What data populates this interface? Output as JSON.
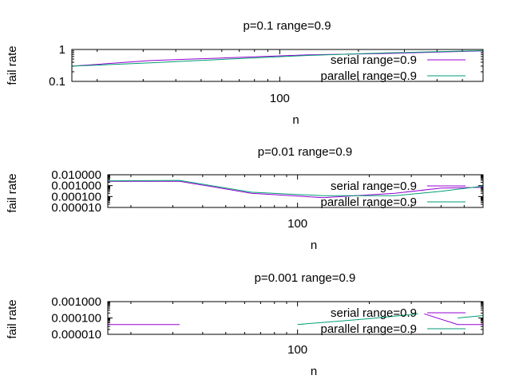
{
  "chart_data": [
    {
      "type": "line",
      "title": "p=0.1 range=0.9",
      "xlabel": "n",
      "ylabel": "fail rate",
      "xscale": "log",
      "yscale": "log",
      "xlim": [
        16,
        600
      ],
      "ylim": [
        0.1,
        1
      ],
      "ytick_labels": [
        "1",
        "0.1"
      ],
      "ytick_values": [
        1,
        0.1
      ],
      "xtick_labels": [
        "100"
      ],
      "xtick_values": [
        100
      ],
      "grid": false,
      "legend_position": "bottom-right",
      "series": [
        {
          "name": "serial range=0.9",
          "color": "#9400d3",
          "x": [
            16,
            32,
            64,
            128,
            256,
            600
          ],
          "y": [
            0.3,
            0.45,
            0.55,
            0.68,
            0.75,
            0.9
          ]
        },
        {
          "name": "parallel  range=0.9",
          "color": "#009e73",
          "x": [
            16,
            32,
            64,
            128,
            256,
            600
          ],
          "y": [
            0.3,
            0.38,
            0.5,
            0.65,
            0.78,
            0.92
          ]
        }
      ]
    },
    {
      "type": "line",
      "title": "p=0.01 range=0.9",
      "xlabel": "n",
      "ylabel": "fail rate",
      "xscale": "log",
      "yscale": "log",
      "xlim": [
        16,
        600
      ],
      "ylim": [
        1e-05,
        0.01
      ],
      "ytick_labels": [
        "0.010000",
        "0.001000",
        "0.000100",
        "0.000010"
      ],
      "ytick_values": [
        0.01,
        0.001,
        0.0001,
        1e-05
      ],
      "xtick_labels": [
        "100"
      ],
      "xtick_values": [
        100
      ],
      "grid": false,
      "legend_position": "bottom-right",
      "series": [
        {
          "name": "serial  range=0.9",
          "color": "#9400d3",
          "x": [
            16,
            32,
            64,
            128,
            256,
            400,
            600
          ],
          "y": [
            0.0025,
            0.0025,
            0.0002,
            8e-05,
            0.0002,
            0.0006,
            0.0007
          ]
        },
        {
          "name": "parallel  range=0.9",
          "color": "#009e73",
          "x": [
            16,
            32,
            64,
            128,
            256,
            400,
            600
          ],
          "y": [
            0.0028,
            0.003,
            0.00025,
            0.00012,
            0.00012,
            0.0003,
            0.0009
          ]
        }
      ]
    },
    {
      "type": "line",
      "title": "p=0.001 range=0.9",
      "xlabel": "n",
      "ylabel": "fail rate",
      "xscale": "log",
      "yscale": "log",
      "xlim": [
        16,
        600
      ],
      "ylim": [
        1e-05,
        0.001
      ],
      "ytick_labels": [
        "0.001000",
        "0.000100",
        "0.000010"
      ],
      "ytick_values": [
        0.001,
        0.0001,
        1e-05
      ],
      "xtick_labels": [
        "100"
      ],
      "xtick_values": [
        100
      ],
      "grid": false,
      "legend_position": "bottom-right",
      "series": [
        {
          "name": "serial range=0.9",
          "color": "#9400d3",
          "segments": [
            {
              "x": [
                16,
                32
              ],
              "y": [
                4e-05,
                4e-05
              ]
            },
            {
              "x": [
                340,
                470,
                600
              ],
              "y": [
                0.00018,
                4e-05,
                4e-05
              ]
            }
          ]
        },
        {
          "name": "parallel  range=0.9",
          "color": "#009e73",
          "segments": [
            {
              "x": [
                100,
                200,
                320
              ],
              "y": [
                4e-05,
                9e-05,
                0.00018
              ]
            },
            {
              "x": [
                470,
                600
              ],
              "y": [
                0.0001,
                0.00014
              ]
            }
          ]
        }
      ]
    }
  ]
}
